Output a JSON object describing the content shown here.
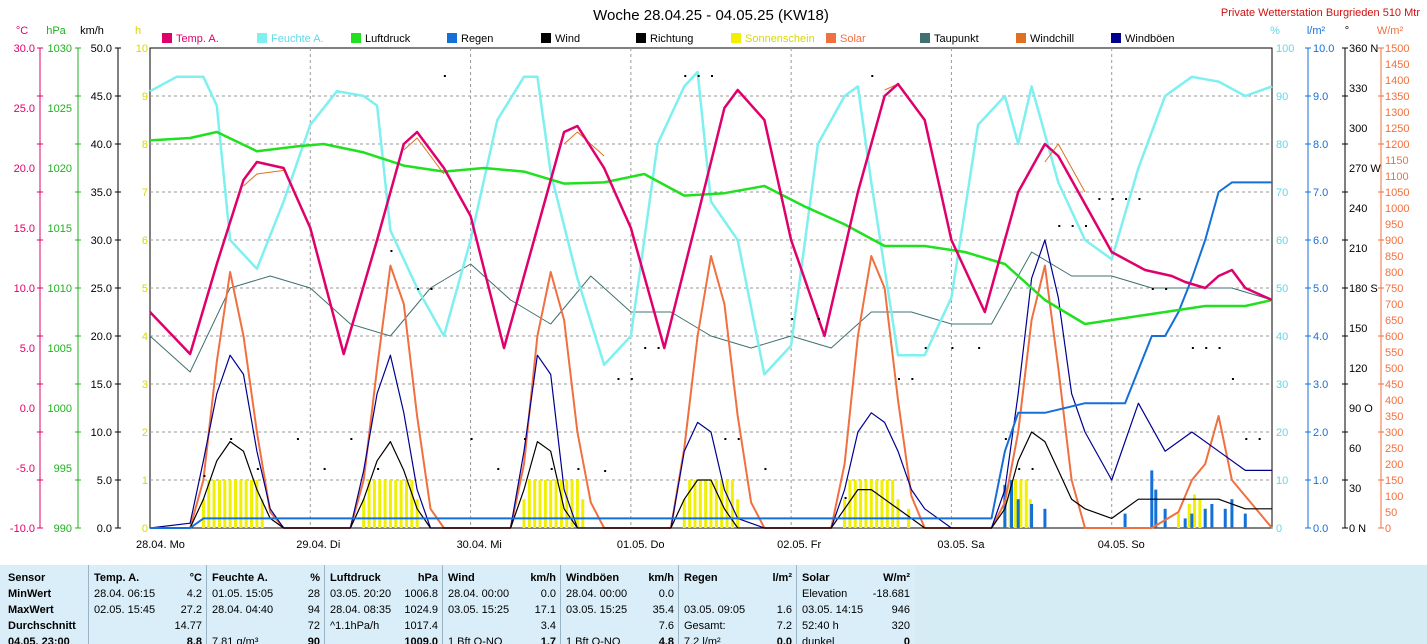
{
  "title": "Woche 28.04.25 - 04.05.25 (KW18)",
  "station": "Private Wetterstation Burgrieden 510 Mtr",
  "left_units": [
    "°C",
    "hPa",
    "km/h",
    "h"
  ],
  "right_units": [
    "%",
    "l/m²",
    "°",
    "W/m²"
  ],
  "legend": [
    {
      "label": "Temp. A.",
      "color": "#e0006c"
    },
    {
      "label": "Feuchte A.",
      "color": "#7ff0f0"
    },
    {
      "label": "Luftdruck",
      "color": "#20e020"
    },
    {
      "label": "Regen",
      "color": "#1470d8"
    },
    {
      "label": "Wind",
      "color": "#000000"
    },
    {
      "label": "Richtung",
      "color": "#000000"
    },
    {
      "label": "Sonnenschein",
      "color": "#f0f000"
    },
    {
      "label": "Solar",
      "color": "#f07040"
    },
    {
      "label": "Taupunkt",
      "color": "#407070"
    },
    {
      "label": "Windchill",
      "color": "#e07020"
    },
    {
      "label": "Windböen",
      "color": "#000090"
    }
  ],
  "axes": {
    "temp": [
      "30.0",
      "25.0",
      "20.0",
      "15.0",
      "10.0",
      "5.0",
      "0.0",
      "-5.0",
      "-10.0"
    ],
    "pressure": [
      "1030",
      "1025",
      "1020",
      "1015",
      "1010",
      "1005",
      "1000",
      "995",
      "990"
    ],
    "wind": [
      "50.0",
      "45.0",
      "40.0",
      "35.0",
      "30.0",
      "25.0",
      "20.0",
      "15.0",
      "10.0",
      "5.0",
      "0.0"
    ],
    "sun": [
      "10",
      "9",
      "8",
      "7",
      "6",
      "5",
      "4",
      "3",
      "2",
      "1",
      "0"
    ],
    "humidity": [
      "100",
      "90",
      "80",
      "70",
      "60",
      "50",
      "40",
      "30",
      "20",
      "10",
      "0"
    ],
    "rain": [
      "10.0",
      "9.0",
      "8.0",
      "7.0",
      "6.0",
      "5.0",
      "4.0",
      "3.0",
      "2.0",
      "1.0",
      "0.0"
    ],
    "direction": [
      "360 N",
      "330",
      "300",
      "270 W",
      "240",
      "210",
      "180 S",
      "150",
      "120",
      "90 O",
      "60",
      "30",
      "0 N"
    ],
    "solar": [
      "1500",
      "1450",
      "1400",
      "1350",
      "1300",
      "1250",
      "1200",
      "1150",
      "1100",
      "1050",
      "1000",
      "950",
      "900",
      "850",
      "800",
      "750",
      "700",
      "650",
      "600",
      "550",
      "500",
      "450",
      "400",
      "350",
      "300",
      "250",
      "200",
      "150",
      "100",
      "50",
      "0"
    ]
  },
  "days": [
    "28.04.  Mo",
    "29.04.  Di",
    "30.04.  Mi",
    "01.05.  Do",
    "02.05.  Fr",
    "03.05.  Sa",
    "04.05.  So"
  ],
  "chart_data": {
    "type": "line",
    "title": "Woche 28.04.25 - 04.05.25 (KW18)",
    "x_unit": "hours since 28.04. 00:00",
    "x_range": [
      0,
      168
    ],
    "series": [
      {
        "name": "Temp. A.",
        "axis": "temp",
        "color": "#e0006c",
        "x": [
          0,
          6,
          10,
          14,
          16,
          20,
          24,
          29,
          34,
          38,
          40,
          44,
          48,
          53,
          58,
          62,
          64,
          68,
          72,
          77,
          82,
          86,
          88,
          92,
          96,
          101,
          106,
          110,
          112,
          116,
          120,
          125,
          130,
          134,
          136,
          140,
          144,
          149,
          153,
          155,
          158,
          160,
          162,
          164,
          166,
          168
        ],
        "y": [
          8,
          4.5,
          12,
          19,
          20.5,
          20,
          15,
          4.5,
          14,
          22,
          23,
          20,
          16,
          5,
          15,
          23,
          23.5,
          20,
          15,
          5,
          16,
          25,
          26.5,
          24,
          14,
          6,
          18,
          26,
          27,
          24,
          14,
          8,
          18,
          22,
          21,
          17,
          13,
          11.5,
          11,
          10.5,
          10,
          11,
          11.5,
          10,
          9.5,
          9
        ]
      },
      {
        "name": "Windchill",
        "axis": "temp",
        "color": "#e07020",
        "x": [
          14,
          16,
          20,
          38,
          40,
          44,
          62,
          64,
          68,
          86,
          88,
          92,
          110,
          112,
          116,
          134,
          136,
          140
        ],
        "y": [
          18.5,
          19.5,
          19.8,
          21.5,
          22.5,
          19.5,
          22,
          23,
          21,
          25,
          26.5,
          24,
          26.5,
          27,
          24,
          20.5,
          22,
          18
        ]
      },
      {
        "name": "Taupunkt",
        "axis": "temp",
        "color": "#407070",
        "x": [
          0,
          6,
          12,
          18,
          24,
          30,
          36,
          42,
          48,
          54,
          60,
          66,
          72,
          78,
          84,
          90,
          96,
          102,
          108,
          114,
          120,
          126,
          132,
          138,
          144,
          150,
          156,
          162,
          168
        ],
        "y": [
          6,
          3,
          10,
          11,
          10,
          7,
          6,
          10,
          12,
          9,
          7,
          11,
          8,
          8,
          6,
          5,
          6,
          5,
          8,
          8,
          7,
          7,
          13,
          11,
          11,
          10,
          10,
          10,
          9
        ]
      },
      {
        "name": "Luftdruck",
        "axis": "pressure",
        "color": "#20e020",
        "x": [
          0,
          6,
          10,
          16,
          22,
          26,
          32,
          38,
          44,
          50,
          56,
          62,
          68,
          74,
          80,
          86,
          92,
          98,
          104,
          110,
          116,
          122,
          128,
          134,
          140,
          146,
          152,
          158,
          164,
          168
        ],
        "y": [
          1022.3,
          1022.5,
          1023.0,
          1021.4,
          1021.8,
          1022.0,
          1021.3,
          1020.2,
          1019.7,
          1020.0,
          1019.7,
          1018.7,
          1018.8,
          1019.5,
          1017.7,
          1017.9,
          1018.5,
          1016.8,
          1015.3,
          1013.5,
          1013.5,
          1013.0,
          1012.0,
          1009.0,
          1007.0,
          1007.5,
          1008.0,
          1008.5,
          1008.5,
          1009.0
        ]
      },
      {
        "name": "Feuchte A.",
        "axis": "humidity",
        "color": "#7ff0f0",
        "x": [
          0,
          4,
          8,
          10,
          12,
          16,
          20,
          24,
          28,
          32,
          34,
          36,
          40,
          44,
          48,
          52,
          56,
          58,
          60,
          64,
          68,
          72,
          76,
          80,
          82,
          84,
          88,
          92,
          96,
          100,
          104,
          106,
          108,
          112,
          116,
          120,
          124,
          128,
          130,
          132,
          136,
          140,
          144,
          148,
          152,
          156,
          160,
          164,
          168
        ],
        "y": [
          91,
          94,
          94,
          88,
          60,
          54,
          68,
          84,
          91,
          90,
          88,
          62,
          50,
          40,
          60,
          85,
          94,
          94,
          74,
          52,
          34,
          40,
          80,
          92,
          95,
          68,
          60,
          32,
          38,
          80,
          90,
          92,
          72,
          36,
          36,
          48,
          84,
          90,
          80,
          92,
          72,
          60,
          56,
          75,
          90,
          94,
          93,
          90,
          92
        ]
      },
      {
        "name": "Windböen",
        "axis": "wind",
        "color": "#000090",
        "x": [
          0,
          6,
          8,
          10,
          12,
          14,
          16,
          18,
          20,
          22,
          24,
          30,
          32,
          34,
          36,
          38,
          40,
          42,
          44,
          48,
          54,
          56,
          58,
          60,
          62,
          64,
          68,
          72,
          78,
          80,
          82,
          84,
          86,
          88,
          92,
          96,
          102,
          104,
          106,
          108,
          110,
          112,
          114,
          116,
          120,
          126,
          128,
          130,
          132,
          134,
          136,
          138,
          140,
          144,
          148,
          152,
          156,
          160,
          164,
          168
        ],
        "y": [
          0,
          0.5,
          7,
          14,
          18,
          16,
          8,
          2,
          0,
          0,
          0,
          0,
          6,
          14,
          18,
          12,
          4,
          0,
          0,
          0,
          0,
          8,
          18,
          16,
          4,
          0,
          0,
          0,
          0,
          8,
          11,
          10,
          4,
          1,
          0,
          0,
          0,
          4,
          10,
          12,
          11,
          8,
          4,
          2,
          0,
          0,
          4,
          14,
          26,
          30,
          24,
          14,
          10,
          5,
          13,
          8,
          10,
          8,
          6,
          6
        ]
      },
      {
        "name": "Wind",
        "axis": "wind",
        "color": "#000000",
        "x": [
          0,
          6,
          8,
          10,
          12,
          14,
          16,
          18,
          20,
          22,
          24,
          30,
          32,
          34,
          36,
          38,
          40,
          42,
          44,
          48,
          54,
          56,
          58,
          60,
          62,
          64,
          68,
          72,
          78,
          80,
          82,
          84,
          86,
          88,
          92,
          96,
          102,
          104,
          106,
          108,
          110,
          112,
          114,
          116,
          120,
          126,
          128,
          130,
          132,
          134,
          136,
          138,
          140,
          144,
          148,
          152,
          156,
          160,
          164,
          168
        ],
        "y": [
          0,
          0,
          3,
          7,
          9,
          8,
          4,
          1,
          0,
          0,
          0,
          0,
          3,
          7,
          9,
          6,
          2,
          0,
          0,
          0,
          0,
          4,
          9,
          8,
          2,
          0,
          0,
          0,
          0,
          3,
          5,
          5,
          2,
          0,
          0,
          0,
          0,
          2,
          4,
          4,
          3,
          2,
          1,
          0,
          0,
          0,
          2,
          7,
          10,
          9,
          6,
          3,
          2,
          1,
          3,
          3,
          3,
          3,
          2,
          2
        ]
      },
      {
        "name": "Solar",
        "axis": "solar",
        "color": "#f07040",
        "x": [
          0,
          6,
          8,
          10,
          12,
          14,
          16,
          18,
          20,
          30,
          32,
          34,
          36,
          38,
          40,
          42,
          44,
          54,
          56,
          58,
          60,
          62,
          64,
          66,
          68,
          78,
          80,
          82,
          84,
          86,
          88,
          90,
          92,
          102,
          104,
          106,
          108,
          110,
          112,
          114,
          116,
          126,
          128,
          130,
          132,
          134,
          136,
          138,
          140,
          150,
          154,
          156,
          158,
          160,
          162,
          168
        ],
        "y": [
          0,
          0,
          150,
          520,
          800,
          600,
          300,
          50,
          0,
          0,
          150,
          500,
          820,
          700,
          350,
          60,
          0,
          0,
          200,
          600,
          800,
          650,
          300,
          80,
          0,
          0,
          250,
          600,
          850,
          700,
          350,
          80,
          0,
          0,
          200,
          600,
          850,
          750,
          400,
          100,
          0,
          0,
          80,
          300,
          650,
          820,
          500,
          150,
          0,
          0,
          50,
          150,
          200,
          350,
          150,
          0
        ]
      },
      {
        "name": "Regen",
        "axis": "rain",
        "color": "#1470d8",
        "x": [
          0,
          6,
          8,
          120,
          126,
          128,
          130,
          134,
          140,
          146,
          150,
          152,
          154,
          156,
          158,
          160,
          162,
          164,
          166,
          168
        ],
        "y": [
          0,
          0,
          0.2,
          0.2,
          0.2,
          1.6,
          2.4,
          2.4,
          2.6,
          2.6,
          4.0,
          4.0,
          4.5,
          5.2,
          6.0,
          7.0,
          7.2,
          7.2,
          7.2,
          7.2
        ]
      },
      {
        "name": "Sonnenschein",
        "axis": "sun",
        "color": "#f0f000",
        "bars_x": [
          8,
          8.8,
          9.6,
          10.4,
          11.2,
          12,
          12.8,
          13.6,
          14.4,
          15.2,
          16,
          16.8,
          32,
          32.8,
          33.6,
          34.4,
          35.2,
          36,
          36.8,
          37.6,
          38.4,
          39.2,
          40,
          56,
          56.8,
          57.6,
          58.4,
          59.2,
          60,
          60.8,
          61.6,
          62.4,
          63.2,
          64,
          64.8,
          80,
          80.8,
          81.6,
          82.4,
          83.2,
          84,
          84.8,
          85.6,
          86.4,
          87.2,
          88,
          104,
          104.8,
          105.6,
          106.4,
          107.2,
          108,
          108.8,
          109.6,
          110.4,
          111.2,
          112,
          113.6,
          128,
          128.8,
          129.6,
          130.4,
          131.2,
          131.8,
          154,
          155.6,
          156.4,
          157.2,
          158
        ],
        "bars_y": [
          0.6,
          1,
          1,
          1,
          1,
          1,
          1,
          1,
          1,
          1,
          1,
          0.6,
          0.6,
          1,
          1,
          1,
          1,
          1,
          1,
          1,
          1,
          1,
          0.6,
          0.6,
          1,
          1,
          1,
          1,
          1,
          1,
          1,
          1,
          1,
          1,
          0.6,
          0.6,
          1,
          1,
          1,
          1,
          1,
          1,
          1,
          1,
          1,
          0.6,
          0.6,
          1,
          1,
          1,
          1,
          1,
          1,
          1,
          1,
          1,
          0.6,
          0.4,
          0.5,
          1,
          1,
          1,
          1,
          0.6,
          0.3,
          0.5,
          0.7,
          0.6,
          0.4
        ]
      }
    ]
  },
  "stats": {
    "sensor": {
      "header": "Sensor",
      "rows": [
        "MinWert",
        "MaxWert",
        "Durchschnitt",
        "04.05. 23:00"
      ]
    },
    "columns": [
      {
        "header": "Temp. A.",
        "unit": "°C",
        "rows": [
          [
            "28.04.  06:15",
            "4.2"
          ],
          [
            "02.05.  15:45",
            "27.2"
          ],
          [
            "",
            "14.77"
          ],
          [
            "",
            "8.8"
          ]
        ]
      },
      {
        "header": "Feuchte A.",
        "unit": "%",
        "rows": [
          [
            "01.05.  15:05",
            "28"
          ],
          [
            "28.04.  04:40",
            "94"
          ],
          [
            "",
            "72"
          ],
          [
            "7.81 g/m³",
            "90"
          ]
        ]
      },
      {
        "header": "Luftdruck",
        "unit": "hPa",
        "rows": [
          [
            "03.05.  20:20",
            "1006.8"
          ],
          [
            "28.04.  08:35",
            "1024.9"
          ],
          [
            "^1.1hPa/h",
            "1017.4"
          ],
          [
            "",
            "1009.0"
          ]
        ]
      },
      {
        "header": "Wind",
        "unit": "km/h",
        "rows": [
          [
            "28.04.  00:00",
            "0.0"
          ],
          [
            "03.05.  15:25",
            "17.1"
          ],
          [
            "",
            "3.4"
          ],
          [
            "1 Bft O-NO",
            "1.7"
          ]
        ]
      },
      {
        "header": "Windböen",
        "unit": "km/h",
        "rows": [
          [
            "28.04.  00:00",
            "0.0"
          ],
          [
            "03.05.  15:25",
            "35.4"
          ],
          [
            "",
            "7.6"
          ],
          [
            "1 Bft O-NO",
            "4.8"
          ]
        ]
      },
      {
        "header": "Regen",
        "unit": "l/m²",
        "rows": [
          [
            "",
            ""
          ],
          [
            "03.05.  09:05",
            "1.6"
          ],
          [
            "Gesamt:",
            "7.2"
          ],
          [
            "7.2 l/m²",
            "0.0"
          ]
        ]
      },
      {
        "header": "Solar",
        "unit": "W/m²",
        "rows": [
          [
            "Elevation",
            "-18.681"
          ],
          [
            "03.05.  14:15",
            "946"
          ],
          [
            "52:40 h",
            "320"
          ],
          [
            "dunkel",
            "0"
          ]
        ]
      }
    ]
  }
}
